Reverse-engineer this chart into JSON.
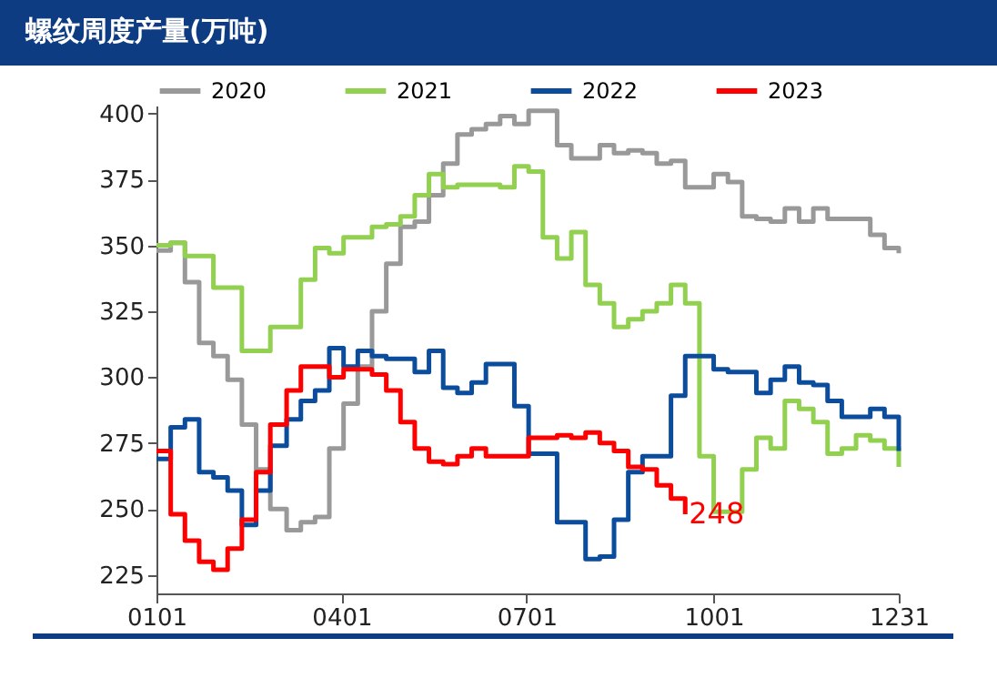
{
  "chart_data": {
    "type": "step",
    "title": "螺纹周度产量(万吨)",
    "x": [
      "--01-01",
      "--01-08",
      "--01-15",
      "--01-22",
      "--01-29",
      "--02-05",
      "--02-12",
      "--02-19",
      "--02-26",
      "--03-05",
      "--03-12",
      "--03-19",
      "--03-26",
      "--04-02",
      "--04-09",
      "--04-16",
      "--04-23",
      "--04-30",
      "--05-07",
      "--05-14",
      "--05-21",
      "--05-28",
      "--06-04",
      "--06-11",
      "--06-18",
      "--06-25",
      "--07-02",
      "--07-09",
      "--07-16",
      "--07-23",
      "--07-30",
      "--08-06",
      "--08-13",
      "--08-20",
      "--08-27",
      "--09-03",
      "--09-10",
      "--09-17",
      "--09-24",
      "--10-01",
      "--10-08",
      "--10-15",
      "--10-22",
      "--10-29",
      "--11-05",
      "--11-12",
      "--11-19",
      "--11-26",
      "--12-03",
      "--12-10",
      "--12-17",
      "--12-24",
      "--12-31"
    ],
    "series": [
      {
        "name": "2020",
        "color": "#999999",
        "values": [
          348,
          351,
          336,
          313,
          308,
          299,
          282,
          265,
          250,
          242,
          245,
          247,
          273,
          290,
          304,
          325,
          343,
          357,
          359,
          369,
          381,
          392,
          394,
          396,
          399,
          396,
          401,
          401,
          388,
          383,
          383,
          388,
          385,
          386,
          385,
          381,
          382,
          372,
          372,
          377,
          374,
          361,
          360,
          359,
          364,
          359,
          364,
          360,
          360,
          360,
          354,
          349,
          347
        ]
      },
      {
        "name": "2021",
        "color": "#92d050",
        "values": [
          350,
          351,
          346,
          346,
          334,
          334,
          310,
          310,
          319,
          319,
          337,
          349,
          347,
          353,
          353,
          357,
          358,
          361,
          369,
          377,
          372,
          373,
          373,
          373,
          372,
          380,
          378,
          353,
          345,
          355,
          335,
          328,
          319,
          322,
          325,
          328,
          335,
          328,
          270,
          249,
          249,
          265,
          277,
          273,
          291,
          288,
          283,
          271,
          273,
          278,
          276,
          273,
          266
        ]
      },
      {
        "name": "2022",
        "color": "#0b4c9c",
        "values": [
          269,
          281,
          284,
          264,
          262,
          257,
          244,
          257,
          274,
          284,
          291,
          295,
          311,
          304,
          310,
          308,
          307,
          307,
          302,
          310,
          296,
          294,
          298,
          305,
          305,
          289,
          271,
          271,
          245,
          245,
          231,
          232,
          246,
          264,
          270,
          270,
          293,
          308,
          308,
          303,
          302,
          302,
          294,
          299,
          304,
          298,
          297,
          291,
          285,
          285,
          288,
          285,
          272
        ]
      },
      {
        "name": "2023",
        "color": "#ff0000",
        "values": [
          272,
          248,
          238,
          230,
          227,
          235,
          246,
          264,
          282,
          295,
          304,
          304,
          300,
          303,
          303,
          301,
          295,
          283,
          273,
          268,
          267,
          270,
          273,
          270,
          270,
          270,
          277,
          277,
          278,
          277,
          279,
          275,
          272,
          266,
          265,
          259,
          254,
          248,
          null,
          null,
          null,
          null,
          null,
          null,
          null,
          null,
          null,
          null,
          null,
          null,
          null,
          null,
          null
        ]
      }
    ],
    "xlim": [
      "--01-01",
      "--12-31"
    ],
    "xticks": [
      {
        "value": "--01-01",
        "label": "0101"
      },
      {
        "value": "--04-01",
        "label": "0401"
      },
      {
        "value": "--07-01",
        "label": "0701"
      },
      {
        "value": "--10-01",
        "label": "1001"
      },
      {
        "value": "--12-31",
        "label": "1231"
      }
    ],
    "ylim": [
      218,
      403
    ],
    "yticks": [
      225,
      250,
      275,
      300,
      325,
      350,
      375,
      400
    ],
    "grid": false,
    "legend": "top",
    "marker": "none",
    "line_style": "solid",
    "annotations": [
      {
        "text": "248",
        "x": "--09-17",
        "y": 248
      }
    ]
  }
}
